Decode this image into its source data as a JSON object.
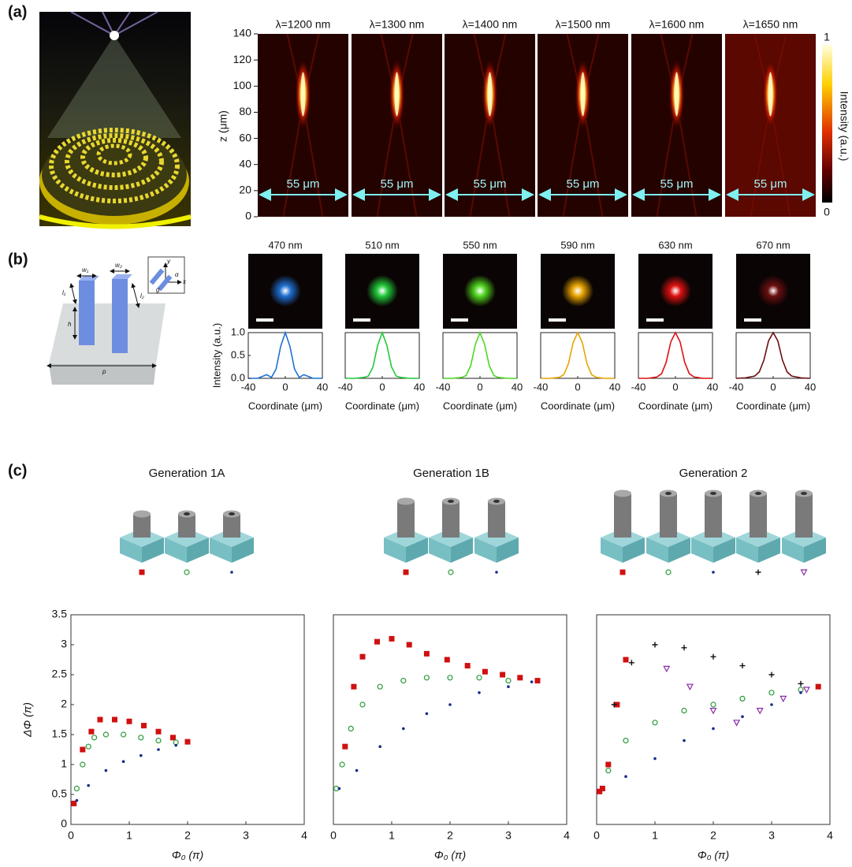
{
  "labels": [
    "(a)",
    "(b)",
    "(c)"
  ],
  "panel_a": {
    "titles": [
      "λ=1200 nm",
      "λ=1300 nm",
      "λ=1400 nm",
      "λ=1500 nm",
      "λ=1600 nm",
      "λ=1650 nm"
    ],
    "scale_label": "55 μm",
    "ylabel": "z (μm)",
    "ylim": [
      0,
      140
    ],
    "yticks": [
      0,
      20,
      40,
      60,
      80,
      100,
      120,
      140
    ],
    "colorbar": {
      "label": "Intensity (a.u.)",
      "ticks": [
        0,
        1
      ]
    }
  },
  "panel_b": {
    "diagram_labels": [
      "w₁",
      "w₂",
      "l₁",
      "l₂",
      "h",
      "p",
      "y",
      "x",
      "α",
      "g"
    ]
  },
  "chart_data": [
    {
      "type": "line",
      "title": "470 nm",
      "x": [
        -40,
        -30,
        -20,
        -15,
        -10,
        -5,
        0,
        5,
        10,
        15,
        20,
        30,
        40
      ],
      "series": [
        {
          "color": "#1f6fd1",
          "values": [
            0,
            0,
            0.08,
            0.02,
            0.2,
            0.7,
            1,
            0.7,
            0.2,
            0.02,
            0.08,
            0,
            0
          ]
        }
      ],
      "xlim": [
        -40,
        40
      ],
      "xticks": [
        -40,
        0,
        40
      ],
      "ylim": [
        0,
        1
      ],
      "yticks": [
        {
          "value": 0,
          "label": "0.0"
        },
        {
          "value": 0.5,
          "label": "0.5"
        },
        {
          "value": 1,
          "label": "1.0"
        }
      ],
      "xlabel": "Coordinate (μm)",
      "ylabel": "Intensity (a.u.)"
    },
    {
      "type": "line",
      "title": "510 nm",
      "x": [
        -40,
        -30,
        -20,
        -15,
        -10,
        -5,
        0,
        5,
        10,
        15,
        20,
        30,
        40
      ],
      "series": [
        {
          "color": "#22c93a",
          "values": [
            0,
            0,
            0.02,
            0.05,
            0.25,
            0.72,
            1,
            0.72,
            0.25,
            0.05,
            0.02,
            0,
            0
          ]
        }
      ],
      "xlim": [
        -40,
        40
      ],
      "xticks": [
        -40,
        0,
        40
      ],
      "ylim": [
        0,
        1
      ],
      "xlabel": "Coordinate (μm)"
    },
    {
      "type": "line",
      "title": "550 nm",
      "x": [
        -40,
        -30,
        -20,
        -15,
        -10,
        -5,
        0,
        5,
        10,
        15,
        20,
        30,
        40
      ],
      "series": [
        {
          "color": "#4fd61e",
          "values": [
            0,
            0,
            0.02,
            0.06,
            0.28,
            0.74,
            1,
            0.74,
            0.28,
            0.06,
            0.02,
            0,
            0
          ]
        }
      ],
      "xlim": [
        -40,
        40
      ],
      "xticks": [
        -40,
        0,
        40
      ],
      "ylim": [
        0,
        1
      ],
      "xlabel": "Coordinate (μm)"
    },
    {
      "type": "line",
      "title": "590 nm",
      "x": [
        -40,
        -30,
        -20,
        -15,
        -10,
        -5,
        0,
        5,
        10,
        15,
        20,
        30,
        40
      ],
      "series": [
        {
          "color": "#e8a400",
          "values": [
            0,
            0,
            0.02,
            0.08,
            0.32,
            0.78,
            1,
            0.78,
            0.32,
            0.08,
            0.02,
            0,
            0
          ]
        }
      ],
      "xlim": [
        -40,
        40
      ],
      "xticks": [
        -40,
        0,
        40
      ],
      "ylim": [
        0,
        1
      ],
      "xlabel": "Coordinate (μm)"
    },
    {
      "type": "line",
      "title": "630 nm",
      "x": [
        -40,
        -30,
        -20,
        -15,
        -10,
        -5,
        0,
        5,
        10,
        15,
        20,
        30,
        40
      ],
      "series": [
        {
          "color": "#dd1111",
          "values": [
            0,
            0,
            0.03,
            0.1,
            0.35,
            0.8,
            1,
            0.8,
            0.35,
            0.1,
            0.03,
            0,
            0
          ]
        }
      ],
      "xlim": [
        -40,
        40
      ],
      "xticks": [
        -40,
        0,
        40
      ],
      "ylim": [
        0,
        1
      ],
      "xlabel": "Coordinate (μm)"
    },
    {
      "type": "line",
      "title": "670 nm",
      "x": [
        -40,
        -30,
        -20,
        -15,
        -10,
        -5,
        0,
        5,
        10,
        15,
        20,
        30,
        40
      ],
      "series": [
        {
          "color": "#6b0f0f",
          "values": [
            0,
            0.01,
            0.05,
            0.14,
            0.4,
            0.82,
            1,
            0.82,
            0.4,
            0.14,
            0.05,
            0.01,
            0
          ]
        }
      ],
      "xlim": [
        -40,
        40
      ],
      "xticks": [
        -40,
        0,
        40
      ],
      "ylim": [
        0,
        1
      ],
      "xlabel": "Coordinate (μm)"
    },
    {
      "type": "scatter",
      "title": "Generation 1A",
      "series": [
        {
          "color": "#d01010",
          "marker": "square",
          "x": [
            0.05,
            0.2,
            0.35,
            0.5,
            0.75,
            1.0,
            1.25,
            1.5,
            1.75,
            2.0
          ],
          "values": [
            0.35,
            1.25,
            1.55,
            1.75,
            1.75,
            1.72,
            1.65,
            1.55,
            1.45,
            1.38
          ]
        },
        {
          "color": "#2a9a3a",
          "marker": "circle",
          "x": [
            0.1,
            0.2,
            0.3,
            0.4,
            0.6,
            0.9,
            1.2,
            1.5,
            1.8
          ],
          "values": [
            0.6,
            1.0,
            1.3,
            1.45,
            1.5,
            1.5,
            1.45,
            1.4,
            1.37
          ]
        },
        {
          "color": "#1a2a8a",
          "marker": "dot",
          "x": [
            0.1,
            0.3,
            0.6,
            0.9,
            1.2,
            1.5,
            1.8
          ],
          "values": [
            0.4,
            0.65,
            0.9,
            1.05,
            1.15,
            1.25,
            1.32
          ]
        }
      ],
      "xlim": [
        0,
        4
      ],
      "xticks": [
        0,
        1,
        2,
        3,
        4
      ],
      "ylim": [
        0,
        3.5
      ],
      "yticks": [
        0,
        0.5,
        1,
        1.5,
        2,
        2.5,
        3,
        3.5
      ],
      "xlabel": "Φ₀ (π)",
      "ylabel": "ΔΦ (π)"
    },
    {
      "type": "scatter",
      "title": "Generation 1B",
      "series": [
        {
          "color": "#d01010",
          "marker": "square",
          "x": [
            0.2,
            0.35,
            0.5,
            0.75,
            1.0,
            1.3,
            1.6,
            1.95,
            2.3,
            2.6,
            2.9,
            3.2,
            3.5
          ],
          "values": [
            1.3,
            2.3,
            2.8,
            3.05,
            3.1,
            3.0,
            2.85,
            2.75,
            2.65,
            2.55,
            2.5,
            2.45,
            2.4
          ]
        },
        {
          "color": "#2a9a3a",
          "marker": "circle",
          "x": [
            0.05,
            0.15,
            0.3,
            0.5,
            0.8,
            1.2,
            1.6,
            2.0,
            2.5,
            3.0
          ],
          "values": [
            0.6,
            1.0,
            1.6,
            2.0,
            2.3,
            2.4,
            2.45,
            2.45,
            2.45,
            2.4
          ]
        },
        {
          "color": "#1a2a8a",
          "marker": "dot",
          "x": [
            0.1,
            0.4,
            0.8,
            1.2,
            1.6,
            2.0,
            2.5,
            3.0,
            3.4
          ],
          "values": [
            0.6,
            0.9,
            1.3,
            1.6,
            1.85,
            2.0,
            2.2,
            2.3,
            2.38
          ]
        }
      ],
      "xlim": [
        0,
        4
      ],
      "xticks": [
        0,
        1,
        2,
        3,
        4
      ],
      "ylim": [
        0,
        3.5
      ],
      "xlabel": "Φ₀ (π)"
    },
    {
      "type": "scatter",
      "title": "Generation 2",
      "series": [
        {
          "color": "#d01010",
          "marker": "square",
          "x": [
            0.05,
            0.1,
            0.2,
            0.35,
            0.5,
            3.8
          ],
          "values": [
            0.55,
            0.6,
            1.0,
            2.0,
            2.75,
            2.3
          ]
        },
        {
          "color": "#2a9a3a",
          "marker": "circle",
          "x": [
            0.2,
            0.5,
            1.0,
            1.5,
            2.0,
            2.5,
            3.0,
            3.5
          ],
          "values": [
            0.9,
            1.4,
            1.7,
            1.9,
            2.0,
            2.1,
            2.2,
            2.25
          ]
        },
        {
          "color": "#1a2a8a",
          "marker": "dot",
          "x": [
            0.5,
            1.0,
            1.5,
            2.0,
            2.5,
            3.0,
            3.5
          ],
          "values": [
            0.8,
            1.1,
            1.4,
            1.6,
            1.8,
            2.0,
            2.2
          ]
        },
        {
          "color": "#111111",
          "marker": "plus",
          "x": [
            0.3,
            0.6,
            1.0,
            1.5,
            2.0,
            2.5,
            3.0,
            3.5
          ],
          "values": [
            2.0,
            2.7,
            3.0,
            2.95,
            2.8,
            2.65,
            2.5,
            2.35
          ]
        },
        {
          "color": "#8a2aa8",
          "marker": "triangle",
          "x": [
            1.2,
            1.6,
            2.0,
            2.4,
            2.8,
            3.2,
            3.6
          ],
          "values": [
            2.6,
            2.3,
            1.9,
            1.7,
            1.9,
            2.1,
            2.25
          ]
        }
      ],
      "xlim": [
        0,
        4
      ],
      "xticks": [
        0,
        1,
        2,
        3,
        4
      ],
      "ylim": [
        0,
        3.5
      ],
      "xlabel": "Φ₀ (π)"
    }
  ]
}
